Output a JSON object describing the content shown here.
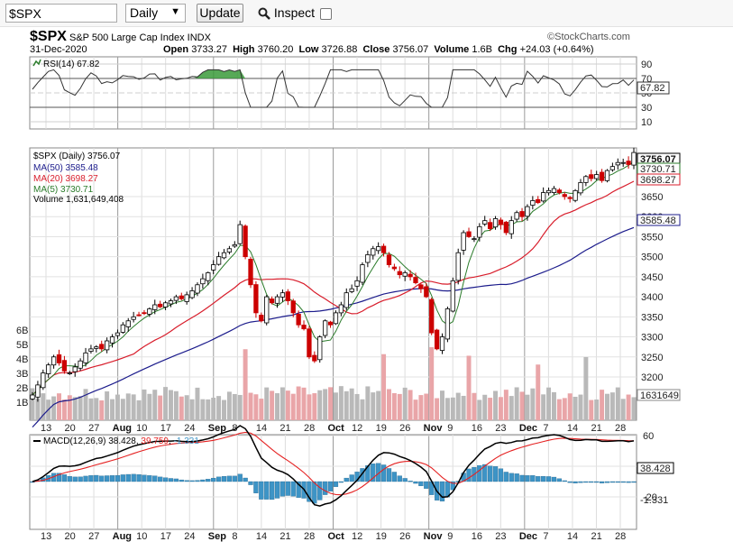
{
  "toolbar": {
    "symbol_value": "$SPX",
    "period_value": "Daily",
    "update_label": "Update",
    "inspect_label": "Inspect"
  },
  "header": {
    "symbol": "$SPX",
    "name": "S&P 500 Large Cap Index",
    "exchange": "INDX",
    "date": "31-Dec-2020",
    "watermark": "©StockCharts.com",
    "open_label": "Open",
    "open": "3733.27",
    "high_label": "High",
    "high": "3760.20",
    "low_label": "Low",
    "low": "3726.88",
    "close_label": "Close",
    "close": "3756.07",
    "volume_label": "Volume",
    "volume": "1.6B",
    "chg_label": "Chg",
    "chg": "+24.03 (+0.64%)"
  },
  "rsi_panel": {
    "legend": "RSI(14) 67.82",
    "value": 67.82,
    "value_label": "67.82",
    "levels": [
      90,
      70,
      50,
      30,
      10
    ],
    "level_labels": [
      "90",
      "70",
      "50",
      "30",
      "10"
    ],
    "overbought": 70,
    "oversold": 30
  },
  "price_panel": {
    "legend_main": "$SPX (Daily) 3756.07",
    "legend_ma50": "MA(50) 3585.48",
    "legend_ma20": "MA(20) 3698.27",
    "legend_ma5": "MA(5) 3730.71",
    "legend_volume": "Volume 1,631,649,408",
    "price_ticks": [
      3650,
      3600,
      3550,
      3500,
      3450,
      3400,
      3350,
      3300,
      3250,
      3200
    ],
    "price_tick_labels": [
      "3650",
      "3600",
      "3550",
      "3500",
      "3450",
      "3400",
      "3350",
      "3300",
      "3250",
      "3200"
    ],
    "volume_ticks": [
      "6B",
      "5B",
      "4B",
      "3B",
      "2B",
      "1B"
    ],
    "last_price_label": "3756.07",
    "ma5_label": "3730.71",
    "ma20_label": "3698.27",
    "ma50_label": "3585.48",
    "volume_label": "1631649",
    "colors": {
      "up": "#000000",
      "down": "#cc0000",
      "ma50": "#1c1c8c",
      "ma20": "#d81d2b",
      "ma5": "#2a7b2a",
      "vol_up": "#b9b9b9",
      "vol_down": "#e9a5a8"
    }
  },
  "macd_panel": {
    "legend_prefix": "MACD(12,26,9)",
    "macd_value": "38.428",
    "signal_value": "39.759",
    "hist_value": "-1.331",
    "ticks": [
      "60",
      "20",
      "-20"
    ],
    "macd_label": "38.428",
    "hist_label": "-1.331",
    "colors": {
      "macd": "#000000",
      "signal": "#e52222",
      "hist": "#3d94c6"
    }
  },
  "x_axis": {
    "labels": [
      {
        "text": "13",
        "bold": false
      },
      {
        "text": "20",
        "bold": false
      },
      {
        "text": "27",
        "bold": false
      },
      {
        "text": "Aug",
        "bold": true
      },
      {
        "text": "10",
        "bold": false
      },
      {
        "text": "17",
        "bold": false
      },
      {
        "text": "24",
        "bold": false
      },
      {
        "text": "Sep",
        "bold": true
      },
      {
        "text": "8",
        "bold": false
      },
      {
        "text": "14",
        "bold": false
      },
      {
        "text": "21",
        "bold": false
      },
      {
        "text": "28",
        "bold": false
      },
      {
        "text": "Oct",
        "bold": true
      },
      {
        "text": "12",
        "bold": false
      },
      {
        "text": "19",
        "bold": false
      },
      {
        "text": "26",
        "bold": false
      },
      {
        "text": "Nov",
        "bold": true
      },
      {
        "text": "9",
        "bold": false
      },
      {
        "text": "16",
        "bold": false
      },
      {
        "text": "23",
        "bold": false
      },
      {
        "text": "Dec",
        "bold": true
      },
      {
        "text": "7",
        "bold": false
      },
      {
        "text": "14",
        "bold": false
      },
      {
        "text": "21",
        "bold": false
      },
      {
        "text": "28",
        "bold": false
      }
    ]
  },
  "chart_data": {
    "type": "candlestick",
    "title": "$SPX S&P 500 Large Cap Index INDX",
    "period": "Daily",
    "x_range": [
      "2020-07-13",
      "2020-12-31"
    ],
    "price_range": [
      3200,
      3760
    ],
    "last": {
      "open": 3733.27,
      "high": 3760.2,
      "low": 3726.88,
      "close": 3756.07,
      "volume": "1.6B",
      "change": "+24.03 (+0.64%)"
    },
    "indicators": {
      "rsi14": 67.82,
      "ma50": 3585.48,
      "ma20": 3698.27,
      "ma5": 3730.71,
      "volume": 1631649408,
      "macd": 38.428,
      "macd_signal": 39.759,
      "macd_hist": -1.331
    },
    "closes_approx": [
      3155,
      3180,
      3210,
      3230,
      3250,
      3235,
      3215,
      3210,
      3225,
      3240,
      3260,
      3270,
      3275,
      3270,
      3290,
      3300,
      3310,
      3330,
      3340,
      3350,
      3355,
      3360,
      3370,
      3380,
      3375,
      3385,
      3390,
      3400,
      3395,
      3405,
      3415,
      3430,
      3445,
      3460,
      3480,
      3500,
      3510,
      3520,
      3530,
      3580,
      3500,
      3430,
      3360,
      3340,
      3400,
      3385,
      3400,
      3410,
      3390,
      3360,
      3330,
      3320,
      3250,
      3240,
      3300,
      3340,
      3330,
      3360,
      3380,
      3410,
      3420,
      3440,
      3480,
      3505,
      3520,
      3525,
      3510,
      3480,
      3470,
      3455,
      3460,
      3450,
      3435,
      3420,
      3400,
      3310,
      3270,
      3300,
      3370,
      3440,
      3510,
      3560,
      3550,
      3545,
      3575,
      3590,
      3570,
      3595,
      3580,
      3560,
      3590,
      3610,
      3600,
      3625,
      3640,
      3635,
      3660,
      3665,
      3670,
      3660,
      3650,
      3645,
      3665,
      3685,
      3700,
      3695,
      3705,
      3690,
      3715,
      3725,
      3735,
      3735,
      3730,
      3760
    ]
  }
}
